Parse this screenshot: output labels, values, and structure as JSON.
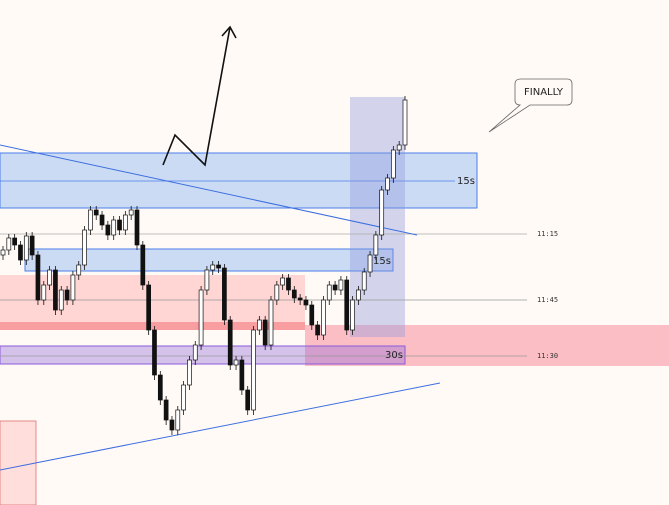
{
  "annotations": {
    "callout": "FINALLY",
    "zone_top_label": "15s",
    "zone_mid_label": "15s",
    "zone_low_label": "30s"
  },
  "price_lines": [
    {
      "label": "11:15"
    },
    {
      "label": "11:45"
    },
    {
      "label": "11:30"
    }
  ]
}
